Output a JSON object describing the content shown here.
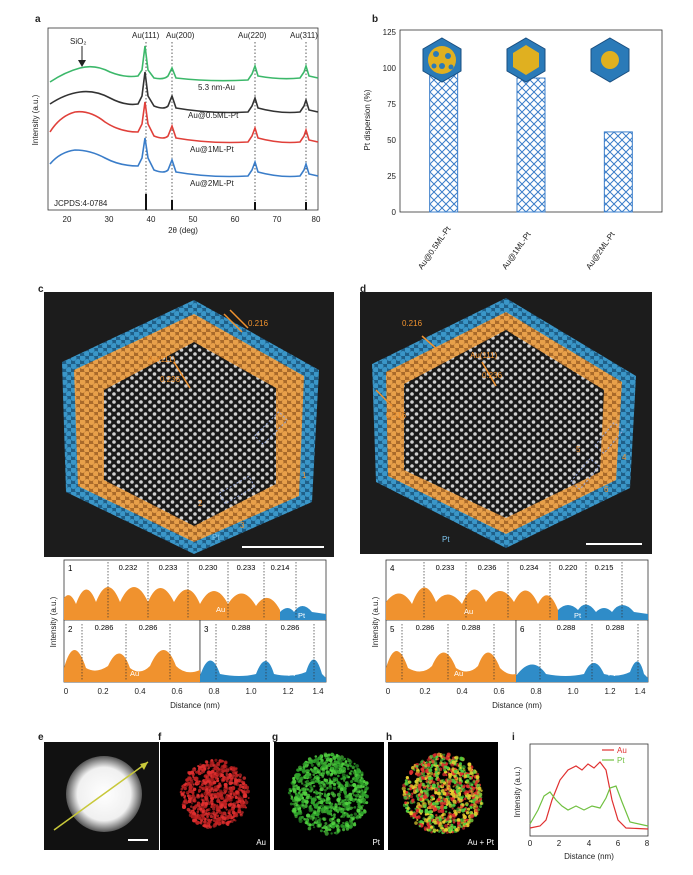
{
  "labels": {
    "a": "a",
    "b": "b",
    "c": "c",
    "d": "d",
    "e": "e",
    "f": "f",
    "g": "g",
    "h": "h",
    "i": "i"
  },
  "colors": {
    "green": "#3cb86a",
    "black": "#333333",
    "red": "#e0403a",
    "blue": "#3a7dc9",
    "orange": "#f0922e",
    "pt_blue": "#2f8cc8",
    "au_map": "#e03030",
    "pt_map": "#50d040",
    "yellow_line": "#c8c83a"
  },
  "panel_a": {
    "ylabel": "Intensity (a.u.)",
    "xlabel": "2θ (deg)",
    "xticks": [
      "20",
      "30",
      "40",
      "50",
      "60",
      "70",
      "80"
    ],
    "peak_labels": [
      "Au(111)",
      "Au(200)",
      "Au(220)",
      "Au(311)"
    ],
    "sio2": "SiO₂",
    "reference": "JCPDS:4-0784",
    "curve_labels": [
      "5.3 nm-Au",
      "Au@0.5ML-Pt",
      "Au@1ML-Pt",
      "Au@2ML-Pt"
    ]
  },
  "panel_b": {
    "ylabel": "Pt dispersion (%)",
    "yticks": [
      "0",
      "25",
      "50",
      "75",
      "100",
      "125"
    ],
    "categories": [
      "Au@0.5ML-Pt",
      "Au@1ML-Pt",
      "Au@2ML-Pt"
    ]
  },
  "chart_data": [
    {
      "type": "bar",
      "title": "",
      "categories": [
        "Au@0.5ML-Pt",
        "Au@1ML-Pt",
        "Au@2ML-Pt"
      ],
      "values": [
        100,
        92,
        55
      ],
      "ylabel": "Pt dispersion (%)",
      "ylim": [
        0,
        125
      ]
    },
    {
      "type": "line",
      "xlabel": "Distance (nm)",
      "ylabel": "Intensity (a.u.)",
      "xlim": [
        0,
        8
      ],
      "series": [
        {
          "name": "Au"
        },
        {
          "name": "Pt"
        }
      ]
    }
  ],
  "panel_c": {
    "spacing_label": "0.216",
    "plane_a": "Au(111)",
    "plane_b": "0.236",
    "regions": [
      "1",
      "2",
      "3"
    ],
    "pt_tag": "Pt",
    "profile1": {
      "num": "1",
      "spacings": [
        "0.232",
        "0.233",
        "0.230",
        "0.233",
        "0.214"
      ],
      "au": "Au",
      "pt": "Pt"
    },
    "profile2": {
      "num": "2",
      "spacings": [
        "0.286",
        "0.286"
      ],
      "au": "Au"
    },
    "profile3": {
      "num": "3",
      "spacings": [
        "0.288",
        "0.286"
      ],
      "pt": "Pt"
    },
    "ylabel": "Intensity (a.u.)",
    "xlabel": "Distance (nm)",
    "xticks": [
      "0",
      "0.2",
      "0.4",
      "0.6",
      "0.8",
      "1.0",
      "1.2",
      "1.4"
    ]
  },
  "panel_d": {
    "spacing_label": "0.216",
    "plane_a": "Au(111)",
    "plane_b": "0.236",
    "side_label": "0.216",
    "regions": [
      "4",
      "5",
      "6"
    ],
    "pt_tag": "Pt",
    "profile4": {
      "num": "4",
      "spacings": [
        "0.233",
        "0.236",
        "0.234",
        "0.220",
        "0.215"
      ],
      "au": "Au",
      "pt": "Pt"
    },
    "profile5": {
      "num": "5",
      "spacings": [
        "0.286",
        "0.288"
      ],
      "au": "Au"
    },
    "profile6": {
      "num": "6",
      "spacings": [
        "0.288",
        "0.288"
      ],
      "pt": "Pt"
    },
    "ylabel": "Intensity (a.u.)",
    "xlabel": "Distance (nm)",
    "xticks": [
      "0",
      "0.2",
      "0.4",
      "0.6",
      "0.8",
      "1.0",
      "1.2",
      "1.4"
    ]
  },
  "maps": {
    "f": "Au",
    "g": "Pt",
    "h": "Au + Pt"
  },
  "panel_i": {
    "ylabel": "Intensity (a.u.)",
    "xlabel": "Distance (nm)",
    "xticks": [
      "0",
      "2",
      "4",
      "6",
      "8"
    ],
    "legend": [
      "Au",
      "Pt"
    ]
  }
}
